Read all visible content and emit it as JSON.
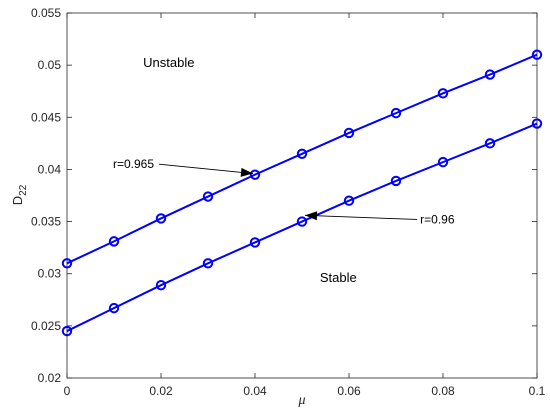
{
  "chart_data": {
    "type": "line",
    "xlabel": "μ",
    "ylabel": "D",
    "ylabel_sub": "22",
    "xlim": [
      0,
      0.1
    ],
    "ylim": [
      0.02,
      0.055
    ],
    "xticks": [
      0,
      0.02,
      0.04,
      0.06,
      0.08,
      0.1
    ],
    "xtick_labels": [
      "0",
      "0.02",
      "0.04",
      "0.06",
      "0.08",
      "0.1"
    ],
    "yticks": [
      0.02,
      0.025,
      0.03,
      0.035,
      0.04,
      0.045,
      0.05,
      0.055
    ],
    "ytick_labels": [
      "0.02",
      "0.025",
      "0.03",
      "0.035",
      "0.04",
      "0.045",
      "0.05",
      "0.055"
    ],
    "grid": false,
    "series_color": "#0000ff",
    "marker": "circle",
    "x": [
      0,
      0.01,
      0.02,
      0.03,
      0.04,
      0.05,
      0.06,
      0.07,
      0.08,
      0.09,
      0.1
    ],
    "series": [
      {
        "label": "r=0.965",
        "values": [
          0.031,
          0.0331,
          0.0353,
          0.0374,
          0.0395,
          0.0415,
          0.0435,
          0.0454,
          0.0473,
          0.0491,
          0.051
        ]
      },
      {
        "label": "r=0.96",
        "values": [
          0.0245,
          0.0267,
          0.0289,
          0.031,
          0.033,
          0.035,
          0.037,
          0.0389,
          0.0407,
          0.0425,
          0.0444
        ]
      }
    ],
    "annotations": [
      {
        "text": "r=0.965",
        "text_x": 0.0,
        "text_y": 0.0405,
        "arrow_to_x": 0.04,
        "arrow_to_y": 0.0397
      },
      {
        "text": "r=0.96",
        "text_x": 0.0995,
        "text_y": 0.0352,
        "arrow_to_x": 0.05,
        "arrow_to_y": 0.0356
      }
    ],
    "regions": [
      {
        "text": "Unstable",
        "x": 0.0162,
        "y": 0.0498
      },
      {
        "text": "Stable",
        "x": 0.0538,
        "y": 0.0292
      }
    ]
  }
}
